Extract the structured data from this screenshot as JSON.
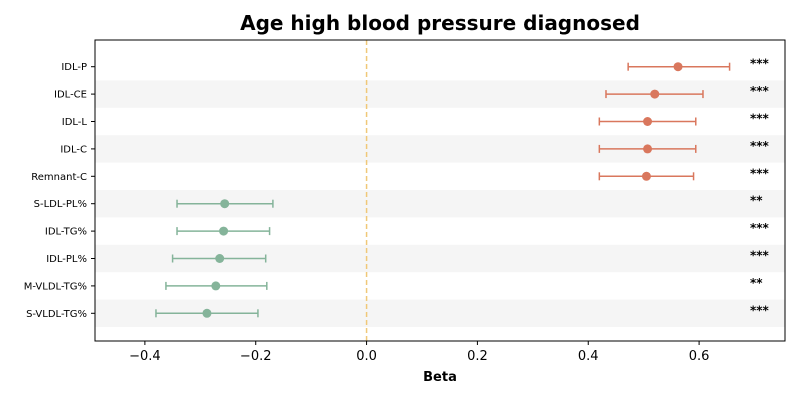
{
  "chart_data": {
    "type": "forest",
    "title": "Age high blood pressure diagnosed",
    "xlabel": "Beta",
    "ylabel": "",
    "xlim": [
      -0.49,
      0.755
    ],
    "xticks": [
      -0.4,
      -0.2,
      0.0,
      0.2,
      0.4,
      0.6
    ],
    "xtick_labels": [
      "−0.4",
      "−0.2",
      "0.0",
      "0.2",
      "0.4",
      "0.6"
    ],
    "reference_line": 0.0,
    "reference_line_color": "#f0c878",
    "positive_color": "#d9775d",
    "negative_color": "#85b49a",
    "band_color": "#f5f5f5",
    "rows": [
      {
        "label": "IDL-P",
        "beta": 0.562,
        "ci_low": 0.472,
        "ci_high": 0.655,
        "sig": "***"
      },
      {
        "label": "IDL-CE",
        "beta": 0.52,
        "ci_low": 0.432,
        "ci_high": 0.607,
        "sig": "***"
      },
      {
        "label": "IDL-L",
        "beta": 0.507,
        "ci_low": 0.42,
        "ci_high": 0.594,
        "sig": "***"
      },
      {
        "label": "IDL-C",
        "beta": 0.507,
        "ci_low": 0.42,
        "ci_high": 0.594,
        "sig": "***"
      },
      {
        "label": "Remnant-C",
        "beta": 0.505,
        "ci_low": 0.42,
        "ci_high": 0.59,
        "sig": "***"
      },
      {
        "label": "S-LDL-PL%",
        "beta": -0.256,
        "ci_low": -0.342,
        "ci_high": -0.169,
        "sig": "**"
      },
      {
        "label": "IDL-TG%",
        "beta": -0.258,
        "ci_low": -0.342,
        "ci_high": -0.175,
        "sig": "***"
      },
      {
        "label": "IDL-PL%",
        "beta": -0.265,
        "ci_low": -0.35,
        "ci_high": -0.182,
        "sig": "***"
      },
      {
        "label": "M-VLDL-TG%",
        "beta": -0.272,
        "ci_low": -0.362,
        "ci_high": -0.18,
        "sig": "**"
      },
      {
        "label": "S-VLDL-TG%",
        "beta": -0.288,
        "ci_low": -0.38,
        "ci_high": -0.196,
        "sig": "***"
      }
    ]
  }
}
